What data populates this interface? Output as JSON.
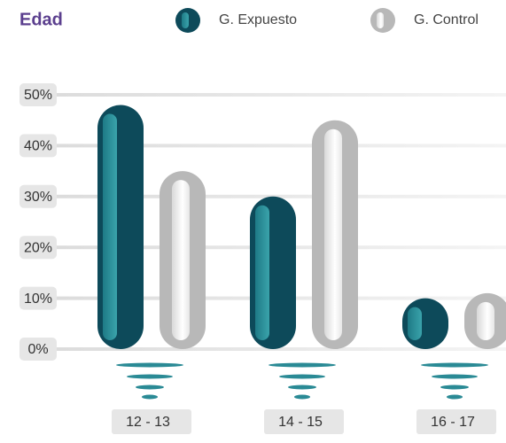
{
  "chart_data": {
    "type": "bar",
    "title": "Edad",
    "categories": [
      "12 - 13",
      "14 - 15",
      "16 - 17"
    ],
    "series": [
      {
        "name": "G. Expuesto",
        "color": "#0d4a5a",
        "values": [
          48,
          30,
          10
        ]
      },
      {
        "name": "G. Control",
        "color": "#b8b8b8",
        "values": [
          35,
          45,
          11
        ]
      }
    ],
    "ylim": [
      0,
      50
    ],
    "yticks": [
      {
        "value": 0,
        "label": "0%"
      },
      {
        "value": 10,
        "label": "10%"
      },
      {
        "value": 20,
        "label": "20%"
      },
      {
        "value": 30,
        "label": "30%"
      },
      {
        "value": 40,
        "label": "40%"
      },
      {
        "value": 50,
        "label": "50%"
      }
    ],
    "grid": true
  }
}
